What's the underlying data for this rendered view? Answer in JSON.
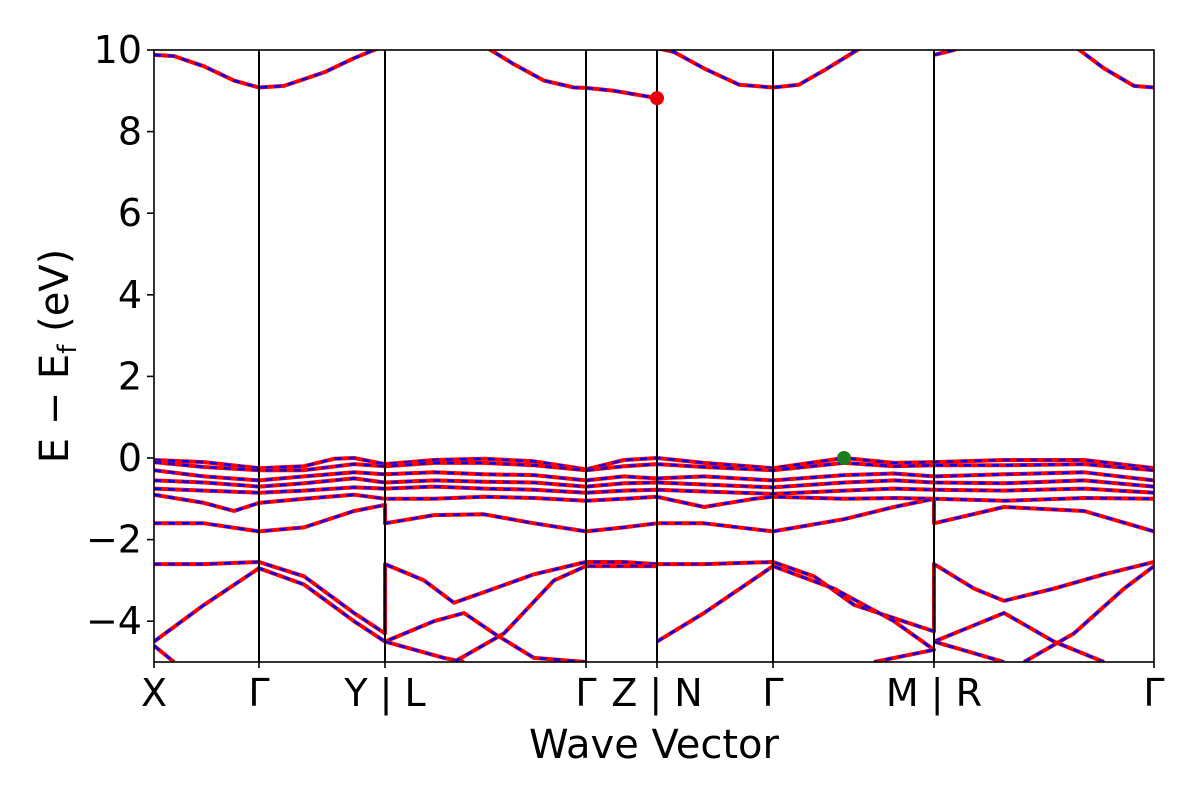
{
  "chart_data": {
    "type": "line",
    "title": "",
    "xlabel": "Wave Vector",
    "ylabel_main": "E − E",
    "ylabel_sub": "f",
    "ylabel_unit": " (eV)",
    "ylim": [
      -5,
      10
    ],
    "xlim": [
      0,
      1
    ],
    "yticks": [
      -4,
      -2,
      0,
      2,
      4,
      6,
      8,
      10
    ],
    "ytick_labels": [
      "−4",
      "−2",
      "0",
      "2",
      "4",
      "6",
      "8",
      "10"
    ],
    "kpath": [
      {
        "x": 0.0,
        "label": "X"
      },
      {
        "x": 0.105,
        "label": "Γ"
      },
      {
        "x": 0.231,
        "label": "Y | L"
      },
      {
        "x": 0.432,
        "label": "Γ"
      },
      {
        "x": 0.503,
        "label": "Z | N"
      },
      {
        "x": 0.619,
        "label": "Γ"
      },
      {
        "x": 0.78,
        "label": "M | R"
      },
      {
        "x": 1.0,
        "label": "Γ"
      }
    ],
    "band_colors": {
      "primary": "#ff0000",
      "overlay": "#0000ff"
    },
    "markers": [
      {
        "name": "cbm",
        "x": 0.503,
        "y": 8.82,
        "color": "#e8000b"
      },
      {
        "name": "vbm",
        "x": 0.69,
        "y": 0.0,
        "color": "#1a7f1a"
      }
    ],
    "bands": [
      {
        "name": "c1",
        "points": [
          [
            0,
            9.88
          ],
          [
            0.02,
            9.85
          ],
          [
            0.05,
            9.6
          ],
          [
            0.08,
            9.25
          ],
          [
            0.105,
            9.08
          ],
          [
            0.13,
            9.12
          ],
          [
            0.17,
            9.45
          ],
          [
            0.2,
            9.8
          ],
          [
            0.22,
            10.0
          ],
          [
            0.231,
            10.1
          ]
        ]
      },
      {
        "name": "c2",
        "points": [
          [
            0.33,
            10.1
          ],
          [
            0.36,
            9.65
          ],
          [
            0.39,
            9.25
          ],
          [
            0.42,
            9.08
          ],
          [
            0.432,
            9.07
          ],
          [
            0.46,
            9.0
          ],
          [
            0.503,
            8.82
          ]
        ]
      },
      {
        "name": "c3",
        "points": [
          [
            0.503,
            10.05
          ],
          [
            0.52,
            9.95
          ],
          [
            0.55,
            9.55
          ],
          [
            0.585,
            9.15
          ],
          [
            0.619,
            9.08
          ],
          [
            0.645,
            9.15
          ],
          [
            0.67,
            9.5
          ],
          [
            0.7,
            9.95
          ],
          [
            0.71,
            10.1
          ]
        ]
      },
      {
        "name": "c4",
        "points": [
          [
            0.78,
            9.88
          ],
          [
            0.8,
            10.0
          ],
          [
            0.81,
            10.1
          ]
        ]
      },
      {
        "name": "c5",
        "points": [
          [
            0.92,
            10.1
          ],
          [
            0.95,
            9.55
          ],
          [
            0.98,
            9.12
          ],
          [
            1.0,
            9.08
          ]
        ]
      },
      {
        "name": "v1",
        "points": [
          [
            0,
            -0.05
          ],
          [
            0.05,
            -0.1
          ],
          [
            0.105,
            -0.25
          ],
          [
            0.15,
            -0.2
          ],
          [
            0.18,
            -0.02
          ],
          [
            0.2,
            0.0
          ],
          [
            0.231,
            -0.15
          ],
          [
            0.28,
            -0.05
          ],
          [
            0.33,
            -0.02
          ],
          [
            0.38,
            -0.08
          ],
          [
            0.432,
            -0.28
          ],
          [
            0.47,
            -0.05
          ],
          [
            0.503,
            0.0
          ],
          [
            0.55,
            -0.12
          ],
          [
            0.619,
            -0.25
          ],
          [
            0.69,
            0.0
          ],
          [
            0.74,
            -0.12
          ],
          [
            0.78,
            -0.1
          ],
          [
            0.85,
            -0.05
          ],
          [
            0.93,
            -0.05
          ],
          [
            1.0,
            -0.25
          ]
        ]
      },
      {
        "name": "v2",
        "points": [
          [
            0,
            -0.1
          ],
          [
            0.05,
            -0.22
          ],
          [
            0.105,
            -0.3
          ],
          [
            0.15,
            -0.3
          ],
          [
            0.2,
            -0.15
          ],
          [
            0.231,
            -0.2
          ],
          [
            0.28,
            -0.12
          ],
          [
            0.33,
            -0.12
          ],
          [
            0.38,
            -0.18
          ],
          [
            0.432,
            -0.3
          ],
          [
            0.47,
            -0.2
          ],
          [
            0.503,
            -0.15
          ],
          [
            0.55,
            -0.22
          ],
          [
            0.619,
            -0.3
          ],
          [
            0.69,
            -0.12
          ],
          [
            0.74,
            -0.2
          ],
          [
            0.78,
            -0.18
          ],
          [
            0.85,
            -0.18
          ],
          [
            0.93,
            -0.15
          ],
          [
            1.0,
            -0.3
          ]
        ]
      },
      {
        "name": "v3",
        "points": [
          [
            0,
            -0.3
          ],
          [
            0.05,
            -0.45
          ],
          [
            0.105,
            -0.55
          ],
          [
            0.15,
            -0.45
          ],
          [
            0.2,
            -0.35
          ],
          [
            0.231,
            -0.4
          ],
          [
            0.28,
            -0.35
          ],
          [
            0.33,
            -0.4
          ],
          [
            0.38,
            -0.42
          ],
          [
            0.432,
            -0.55
          ],
          [
            0.47,
            -0.45
          ],
          [
            0.503,
            -0.5
          ],
          [
            0.55,
            -0.45
          ],
          [
            0.619,
            -0.55
          ],
          [
            0.69,
            -0.42
          ],
          [
            0.74,
            -0.38
          ],
          [
            0.78,
            -0.45
          ],
          [
            0.85,
            -0.4
          ],
          [
            0.93,
            -0.35
          ],
          [
            1.0,
            -0.55
          ]
        ]
      },
      {
        "name": "v4",
        "points": [
          [
            0,
            -0.55
          ],
          [
            0.05,
            -0.6
          ],
          [
            0.105,
            -0.7
          ],
          [
            0.15,
            -0.62
          ],
          [
            0.2,
            -0.5
          ],
          [
            0.231,
            -0.6
          ],
          [
            0.28,
            -0.55
          ],
          [
            0.33,
            -0.58
          ],
          [
            0.38,
            -0.6
          ],
          [
            0.432,
            -0.7
          ],
          [
            0.47,
            -0.62
          ],
          [
            0.503,
            -0.6
          ],
          [
            0.55,
            -0.65
          ],
          [
            0.619,
            -0.72
          ],
          [
            0.69,
            -0.6
          ],
          [
            0.74,
            -0.55
          ],
          [
            0.78,
            -0.6
          ],
          [
            0.85,
            -0.62
          ],
          [
            0.93,
            -0.55
          ],
          [
            1.0,
            -0.7
          ]
        ]
      },
      {
        "name": "v5",
        "points": [
          [
            0,
            -0.75
          ],
          [
            0.05,
            -0.8
          ],
          [
            0.105,
            -0.85
          ],
          [
            0.15,
            -0.8
          ],
          [
            0.2,
            -0.72
          ],
          [
            0.231,
            -0.75
          ],
          [
            0.28,
            -0.7
          ],
          [
            0.33,
            -0.75
          ],
          [
            0.38,
            -0.78
          ],
          [
            0.432,
            -0.85
          ],
          [
            0.47,
            -0.8
          ],
          [
            0.503,
            -0.78
          ],
          [
            0.55,
            -0.82
          ],
          [
            0.619,
            -0.88
          ],
          [
            0.69,
            -0.8
          ],
          [
            0.74,
            -0.75
          ],
          [
            0.78,
            -0.78
          ],
          [
            0.85,
            -0.8
          ],
          [
            0.93,
            -0.75
          ],
          [
            1.0,
            -0.85
          ]
        ]
      },
      {
        "name": "v6",
        "points": [
          [
            0,
            -0.9
          ],
          [
            0.05,
            -1.1
          ],
          [
            0.08,
            -1.3
          ],
          [
            0.105,
            -1.1
          ],
          [
            0.15,
            -1.0
          ],
          [
            0.2,
            -0.9
          ],
          [
            0.231,
            -1.0
          ],
          [
            0.28,
            -1.0
          ],
          [
            0.33,
            -0.95
          ],
          [
            0.38,
            -0.98
          ],
          [
            0.432,
            -1.05
          ],
          [
            0.47,
            -1.0
          ],
          [
            0.503,
            -0.95
          ],
          [
            0.55,
            -1.2
          ],
          [
            0.6,
            -1.0
          ],
          [
            0.619,
            -0.95
          ],
          [
            0.69,
            -1.0
          ],
          [
            0.74,
            -0.98
          ],
          [
            0.78,
            -1.0
          ],
          [
            0.85,
            -1.05
          ],
          [
            0.93,
            -0.98
          ],
          [
            1.0,
            -1.0
          ]
        ]
      },
      {
        "name": "v7",
        "points": [
          [
            0,
            -1.6
          ],
          [
            0.05,
            -1.6
          ],
          [
            0.105,
            -1.8
          ],
          [
            0.15,
            -1.7
          ],
          [
            0.2,
            -1.3
          ],
          [
            0.231,
            -1.15
          ],
          [
            0.231,
            -1.6
          ],
          [
            0.28,
            -1.4
          ],
          [
            0.33,
            -1.38
          ],
          [
            0.38,
            -1.6
          ],
          [
            0.432,
            -1.8
          ],
          [
            0.47,
            -1.7
          ],
          [
            0.503,
            -1.6
          ],
          [
            0.55,
            -1.6
          ],
          [
            0.619,
            -1.8
          ],
          [
            0.69,
            -1.5
          ],
          [
            0.74,
            -1.2
          ],
          [
            0.78,
            -1.0
          ],
          [
            0.78,
            -1.6
          ],
          [
            0.85,
            -1.2
          ],
          [
            0.93,
            -1.3
          ],
          [
            1.0,
            -1.8
          ]
        ]
      },
      {
        "name": "v8",
        "points": [
          [
            0,
            -2.6
          ],
          [
            0.05,
            -2.6
          ],
          [
            0.105,
            -2.55
          ],
          [
            0.15,
            -2.9
          ],
          [
            0.2,
            -3.8
          ],
          [
            0.231,
            -4.3
          ],
          [
            0.231,
            -2.6
          ],
          [
            0.27,
            -3.0
          ],
          [
            0.3,
            -3.55
          ],
          [
            0.34,
            -3.2
          ],
          [
            0.38,
            -2.85
          ],
          [
            0.432,
            -2.55
          ],
          [
            0.47,
            -2.55
          ],
          [
            0.503,
            -2.6
          ],
          [
            0.55,
            -2.6
          ],
          [
            0.619,
            -2.55
          ],
          [
            0.66,
            -2.9
          ],
          [
            0.7,
            -3.6
          ],
          [
            0.78,
            -4.25
          ],
          [
            0.78,
            -2.6
          ],
          [
            0.82,
            -3.2
          ],
          [
            0.85,
            -3.5
          ],
          [
            0.9,
            -3.2
          ],
          [
            0.95,
            -2.85
          ],
          [
            1.0,
            -2.55
          ]
        ]
      },
      {
        "name": "v9",
        "points": [
          [
            0,
            -4.5
          ],
          [
            0.05,
            -3.6
          ],
          [
            0.105,
            -2.7
          ],
          [
            0.15,
            -3.1
          ],
          [
            0.2,
            -4.0
          ],
          [
            0.231,
            -4.5
          ],
          [
            0.28,
            -4.0
          ],
          [
            0.31,
            -3.8
          ],
          [
            0.34,
            -4.3
          ],
          [
            0.38,
            -4.9
          ],
          [
            0.432,
            -5.0
          ]
        ]
      },
      {
        "name": "v10",
        "points": [
          [
            0.231,
            -4.5
          ],
          [
            0.29,
            -4.9
          ],
          [
            0.31,
            -5.0
          ]
        ]
      },
      {
        "name": "v11",
        "points": [
          [
            0.3,
            -5.0
          ],
          [
            0.35,
            -4.3
          ],
          [
            0.4,
            -3.0
          ],
          [
            0.432,
            -2.65
          ],
          [
            0.503,
            -2.65
          ]
        ]
      },
      {
        "name": "v12",
        "points": [
          [
            0.503,
            -4.5
          ],
          [
            0.55,
            -3.8
          ],
          [
            0.619,
            -2.65
          ],
          [
            0.68,
            -3.2
          ],
          [
            0.74,
            -4.0
          ],
          [
            0.78,
            -4.7
          ],
          [
            0.72,
            -5.0
          ]
        ]
      },
      {
        "name": "v13",
        "points": [
          [
            0.78,
            -4.5
          ],
          [
            0.82,
            -4.1
          ],
          [
            0.85,
            -3.8
          ],
          [
            0.9,
            -4.5
          ],
          [
            0.95,
            -5.0
          ]
        ]
      },
      {
        "name": "v14",
        "points": [
          [
            0.78,
            -4.5
          ],
          [
            0.85,
            -5.0
          ]
        ]
      },
      {
        "name": "v15",
        "points": [
          [
            0.87,
            -5.0
          ],
          [
            0.92,
            -4.3
          ],
          [
            0.97,
            -3.2
          ],
          [
            1.0,
            -2.65
          ]
        ]
      },
      {
        "name": "v16",
        "points": [
          [
            0,
            -4.6
          ],
          [
            0.02,
            -5.0
          ]
        ]
      }
    ]
  }
}
